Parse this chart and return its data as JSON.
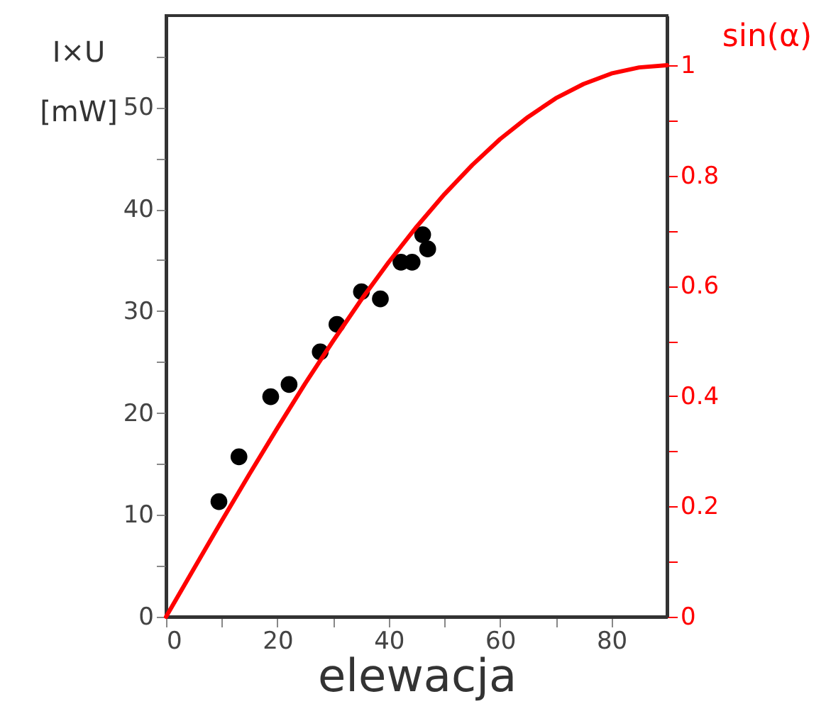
{
  "chart_data": {
    "type": "scatter",
    "xlabel": "elewacja",
    "ylabel": "I×U [mW]",
    "y2label": "sin(α)",
    "xlim": [
      0,
      90
    ],
    "xticks": [
      0,
      {
        "value": 10,
        "label": null
      },
      20,
      {
        "value": 30,
        "label": null
      },
      40,
      {
        "value": 50,
        "label": null
      },
      60,
      {
        "value": 70,
        "label": null
      },
      80
    ],
    "ylim": [
      0,
      59
    ],
    "yticks": [
      0,
      {
        "value": 5,
        "label": null
      },
      10,
      {
        "value": 15,
        "label": null
      },
      20,
      {
        "value": 25,
        "label": null
      },
      30,
      {
        "value": 35,
        "label": null
      },
      40,
      {
        "value": 45,
        "label": null
      },
      50,
      {
        "value": 55,
        "label": null
      }
    ],
    "y2lim": [
      0,
      1.09
    ],
    "y2ticks": [
      0,
      {
        "value": 0.1,
        "label": null
      },
      0.2,
      {
        "value": 0.3,
        "label": null
      },
      0.4,
      {
        "value": 0.5,
        "label": null
      },
      0.6,
      {
        "value": 0.7,
        "label": null
      },
      0.8,
      {
        "value": 0.9,
        "label": null
      },
      1
    ],
    "grid": false,
    "series": [
      {
        "marker": "circle",
        "color": "#000000",
        "x": [
          9.5,
          13.1,
          18.8,
          22.1,
          27.7,
          30.7,
          35.1,
          38.5,
          42.2,
          44.2,
          46.1,
          47.0
        ],
        "values": [
          11.3,
          15.7,
          21.6,
          22.8,
          26.0,
          28.7,
          31.9,
          31.2,
          34.8,
          34.8,
          37.5,
          36.1
        ]
      },
      {
        "type": "line",
        "marker": "none",
        "axis": "y2",
        "color": "#ff0000",
        "line_style": "solid",
        "x": [
          0,
          5,
          10,
          15,
          20,
          25,
          30,
          35,
          40,
          45,
          50,
          55,
          60,
          65,
          70,
          75,
          80,
          85,
          90
        ],
        "values": [
          0,
          0.087,
          0.174,
          0.259,
          0.342,
          0.423,
          0.5,
          0.574,
          0.643,
          0.707,
          0.766,
          0.819,
          0.866,
          0.906,
          0.94,
          0.966,
          0.985,
          0.996,
          1
        ]
      }
    ]
  }
}
